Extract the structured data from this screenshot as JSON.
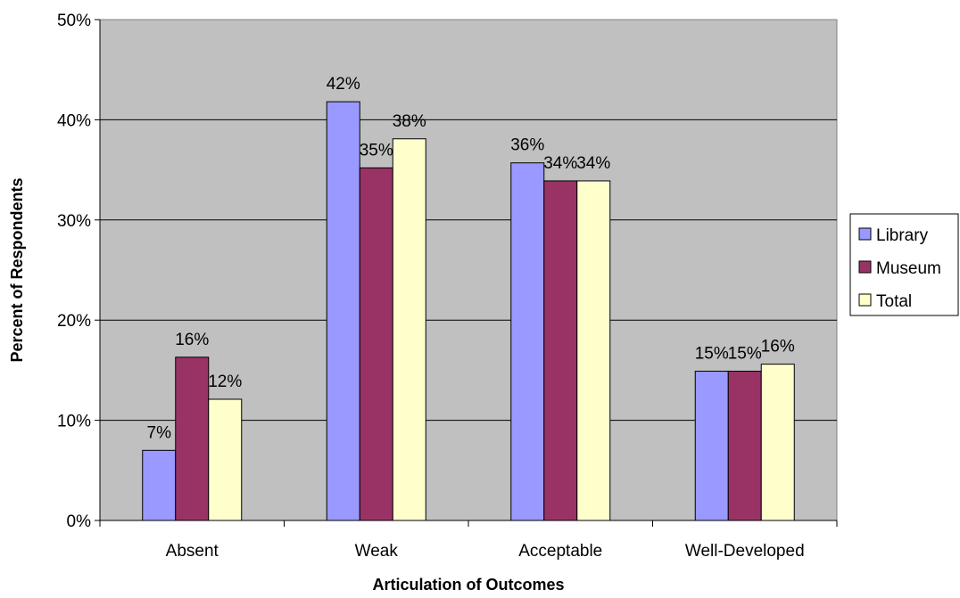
{
  "chart_data": {
    "type": "bar",
    "title": "",
    "xlabel": "Articulation of Outcomes",
    "ylabel": "Percent of Respondents",
    "ylim": [
      0,
      50
    ],
    "yticks": [
      "0%",
      "10%",
      "20%",
      "30%",
      "40%",
      "50%"
    ],
    "ytick_values": [
      0,
      10,
      20,
      30,
      40,
      50
    ],
    "categories": [
      "Absent",
      "Weak",
      "Acceptable",
      "Well-Developed"
    ],
    "series": [
      {
        "name": "Library",
        "values": [
          7,
          41.8,
          35.7,
          14.9
        ],
        "labels": [
          "7%",
          "42%",
          "36%",
          "15%"
        ],
        "color": "#9999ff"
      },
      {
        "name": "Museum",
        "values": [
          16.3,
          35.2,
          33.9,
          14.9
        ],
        "labels": [
          "16%",
          "35%",
          "34%",
          "15%"
        ],
        "color": "#993366"
      },
      {
        "name": "Total",
        "values": [
          12.1,
          38.1,
          33.9,
          15.6
        ],
        "labels": [
          "12%",
          "38%",
          "34%",
          "16%"
        ],
        "color": "#ffffcc"
      }
    ],
    "grid": true,
    "legend_position": "right",
    "plot_background": "#c0c0c0"
  }
}
